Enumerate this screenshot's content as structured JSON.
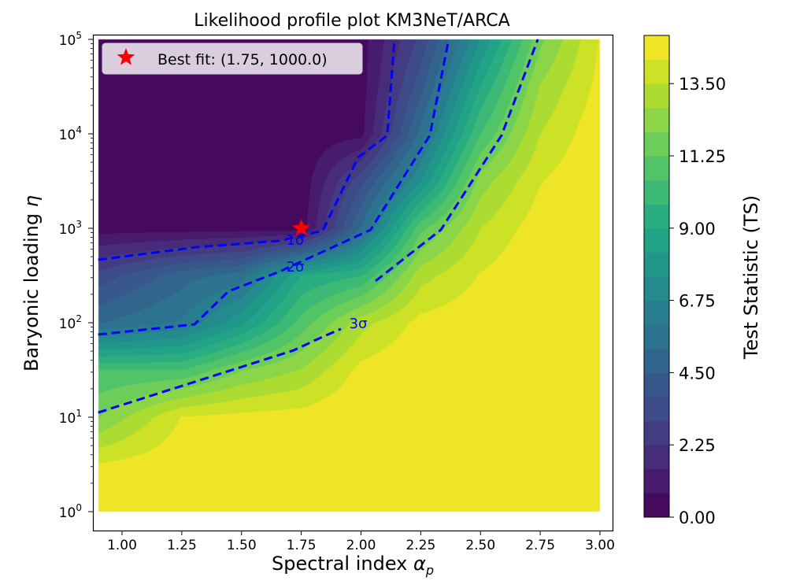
{
  "chart_data": {
    "type": "heatmap",
    "subtype": "filled-contour",
    "title": "Likelihood profile plot KM3NeT/ARCA",
    "xlabel": "Spectral index α_p",
    "xlabel_main": "Spectral index ",
    "xlabel_symbol": "α",
    "xlabel_sub": "p",
    "ylabel": "Baryonic loading η",
    "ylabel_main": "Baryonic loading ",
    "ylabel_symbol": "η",
    "xlim": [
      0.9,
      3.0
    ],
    "ylim": [
      1,
      100000
    ],
    "yscale": "log",
    "grid": false,
    "x_ticks": [
      "1.00",
      "1.25",
      "1.50",
      "1.75",
      "2.00",
      "2.25",
      "2.50",
      "2.75",
      "3.00"
    ],
    "y_ticks": [
      {
        "base": "10",
        "exp": "0"
      },
      {
        "base": "10",
        "exp": "1"
      },
      {
        "base": "10",
        "exp": "2"
      },
      {
        "base": "10",
        "exp": "3"
      },
      {
        "base": "10",
        "exp": "4"
      },
      {
        "base": "10",
        "exp": "5"
      }
    ],
    "colormap": "viridis",
    "colorbar": {
      "label": "Test Statistic (TS)",
      "min": 0,
      "max": 15,
      "levels": 20,
      "ticks": [
        "0.00",
        "2.25",
        "4.50",
        "6.75",
        "9.00",
        "11.25",
        "13.50"
      ]
    },
    "grid_alpha": [
      0.9,
      1.25,
      1.5,
      1.75,
      2.0,
      2.25,
      2.5,
      2.75,
      3.0
    ],
    "grid_log10_eta": [
      0,
      0.5,
      1,
      1.5,
      2,
      2.5,
      3,
      3.5,
      4,
      4.5,
      5
    ],
    "ts_values_by_alpha": [
      [
        15,
        14.3,
        11.95,
        10.5,
        5.2,
        3.3,
        0.4,
        0.3,
        0.3,
        0.3,
        0.3
      ],
      [
        15,
        14.8,
        14.3,
        10.5,
        6.1,
        4.92,
        0.4,
        0.3,
        0.3,
        0.3,
        0.3
      ],
      [
        15,
        15,
        14.5,
        11.96,
        8.04,
        5.59,
        0.45,
        0.35,
        0.3,
        0.3,
        0.3
      ],
      [
        15,
        15,
        14.6,
        12.8,
        10.8,
        9.0,
        0.3,
        0.2,
        0.2,
        0.2,
        0.2
      ],
      [
        15,
        15,
        15,
        14.5,
        13.2,
        9.7,
        5.3,
        3.5,
        0.5,
        0.4,
        0.4
      ],
      [
        15,
        15,
        15,
        15,
        14.5,
        13.2,
        11.0,
        7.5,
        5.5,
        4.2,
        3.2
      ],
      [
        15,
        15,
        15,
        15,
        14.8,
        14.3,
        13.5,
        12.36,
        10.5,
        9.0,
        7.5
      ],
      [
        15,
        15,
        15,
        15,
        15,
        15,
        14.7,
        14.2,
        13.5,
        12.8,
        11.8
      ],
      [
        15,
        15,
        15,
        15,
        15,
        15,
        15,
        15,
        14.8,
        14.5,
        14.3
      ]
    ],
    "contour_lines": [
      {
        "label": "1σ",
        "color": "#0000ff",
        "segments": [
          [
            [
              0.9,
              464
            ],
            [
              1.313,
              631
            ],
            [
              1.659,
              736
            ],
            [
              1.84,
              944
            ],
            [
              1.988,
              5620
            ],
            [
              2.11,
              9620
            ],
            [
              2.14,
              100000
            ]
          ]
        ]
      },
      {
        "label": "2σ",
        "color": "#0000ff",
        "segments": [
          [
            [
              0.9,
              75
            ],
            [
              1.303,
              96
            ],
            [
              1.445,
              215
            ],
            [
              1.659,
              348
            ],
            [
              2.04,
              962
            ],
            [
              2.288,
              9620
            ],
            [
              2.367,
              100000
            ]
          ]
        ]
      },
      {
        "label": "3σ",
        "color": "#0000ff",
        "segments": [
          [
            [
              0.9,
              11.2
            ],
            [
              1.718,
              51
            ],
            [
              1.84,
              71
            ],
            [
              1.916,
              86
            ]
          ],
          [
            [
              2.061,
              277
            ],
            [
              2.334,
              962
            ],
            [
              2.588,
              9620
            ],
            [
              2.74,
              100000
            ]
          ]
        ]
      }
    ],
    "best_fit": {
      "alpha": 1.75,
      "eta": 1000.0,
      "marker": "star",
      "color": "#ff0000"
    },
    "legend": {
      "position": "upper-left",
      "entries": [
        {
          "label": "Best fit: (1.75, 1000.0)",
          "marker": "star",
          "color": "#ff0000"
        }
      ]
    }
  }
}
